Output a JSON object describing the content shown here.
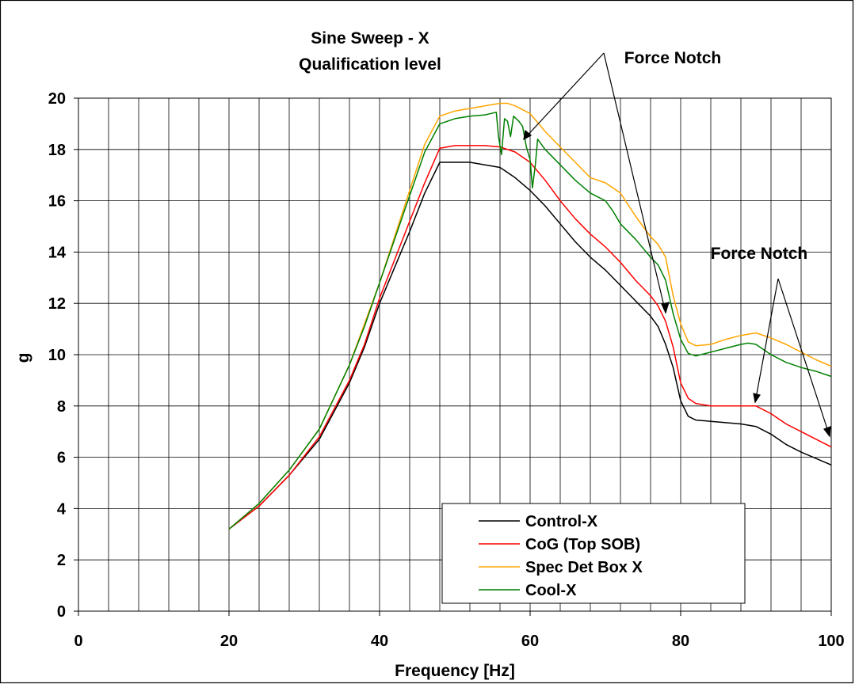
{
  "chart_data": {
    "type": "line",
    "title": [
      "Sine Sweep - X",
      "Qualification level"
    ],
    "xlabel": "Frequency [Hz]",
    "ylabel": "g",
    "xlim": [
      0,
      100
    ],
    "ylim": [
      0,
      20
    ],
    "x_ticks": [
      "0",
      "20",
      "40",
      "60",
      "80",
      "100"
    ],
    "y_ticks": [
      "0",
      "2",
      "4",
      "6",
      "8",
      "10",
      "12",
      "14",
      "16",
      "18",
      "20"
    ],
    "grid": true,
    "legend_position": "bottom-center",
    "annotations": [
      "Force Notch",
      "Force Notch"
    ],
    "series": [
      {
        "name": "Control-X",
        "color": "#000000",
        "points": [
          [
            20,
            3.2
          ],
          [
            24,
            4.1
          ],
          [
            28,
            5.3
          ],
          [
            32,
            6.7
          ],
          [
            36,
            8.9
          ],
          [
            38,
            10.3
          ],
          [
            40,
            12.0
          ],
          [
            42,
            13.4
          ],
          [
            44,
            14.8
          ],
          [
            46,
            16.3
          ],
          [
            48,
            17.5
          ],
          [
            50,
            17.5
          ],
          [
            52,
            17.5
          ],
          [
            54,
            17.4
          ],
          [
            56,
            17.3
          ],
          [
            58,
            16.9
          ],
          [
            60,
            16.4
          ],
          [
            62,
            15.8
          ],
          [
            64,
            15.1
          ],
          [
            66,
            14.4
          ],
          [
            68,
            13.8
          ],
          [
            70,
            13.3
          ],
          [
            72,
            12.7
          ],
          [
            74,
            12.1
          ],
          [
            76,
            11.5
          ],
          [
            77,
            11.1
          ],
          [
            78,
            10.4
          ],
          [
            79,
            9.5
          ],
          [
            80,
            8.2
          ],
          [
            81,
            7.6
          ],
          [
            82,
            7.45
          ],
          [
            84,
            7.4
          ],
          [
            86,
            7.35
          ],
          [
            88,
            7.3
          ],
          [
            90,
            7.2
          ],
          [
            92,
            6.9
          ],
          [
            94,
            6.5
          ],
          [
            96,
            6.2
          ],
          [
            98,
            5.95
          ],
          [
            100,
            5.7
          ]
        ]
      },
      {
        "name": "CoG (Top SOB)",
        "color": "#ff0000",
        "points": [
          [
            20,
            3.2
          ],
          [
            24,
            4.1
          ],
          [
            28,
            5.3
          ],
          [
            32,
            6.8
          ],
          [
            36,
            9.0
          ],
          [
            38,
            10.4
          ],
          [
            40,
            12.2
          ],
          [
            42,
            13.7
          ],
          [
            44,
            15.2
          ],
          [
            46,
            16.7
          ],
          [
            48,
            18.05
          ],
          [
            50,
            18.15
          ],
          [
            52,
            18.15
          ],
          [
            54,
            18.15
          ],
          [
            56,
            18.1
          ],
          [
            58,
            17.9
          ],
          [
            60,
            17.5
          ],
          [
            62,
            16.8
          ],
          [
            64,
            16.0
          ],
          [
            66,
            15.3
          ],
          [
            68,
            14.7
          ],
          [
            70,
            14.2
          ],
          [
            72,
            13.6
          ],
          [
            74,
            12.9
          ],
          [
            76,
            12.3
          ],
          [
            77,
            11.9
          ],
          [
            78,
            11.3
          ],
          [
            79,
            10.3
          ],
          [
            80,
            8.9
          ],
          [
            81,
            8.3
          ],
          [
            82,
            8.1
          ],
          [
            84,
            8.0
          ],
          [
            86,
            8.0
          ],
          [
            88,
            8.0
          ],
          [
            90,
            8.0
          ],
          [
            92,
            7.7
          ],
          [
            94,
            7.3
          ],
          [
            96,
            7.0
          ],
          [
            98,
            6.7
          ],
          [
            100,
            6.4
          ]
        ]
      },
      {
        "name": "Spec Det Box X",
        "color": "#ffa500",
        "points": [
          [
            20,
            3.2
          ],
          [
            24,
            4.2
          ],
          [
            28,
            5.5
          ],
          [
            32,
            7.1
          ],
          [
            36,
            9.6
          ],
          [
            38,
            11.2
          ],
          [
            40,
            12.8
          ],
          [
            42,
            14.6
          ],
          [
            44,
            16.4
          ],
          [
            46,
            18.2
          ],
          [
            48,
            19.3
          ],
          [
            50,
            19.5
          ],
          [
            52,
            19.6
          ],
          [
            54,
            19.7
          ],
          [
            56,
            19.8
          ],
          [
            57,
            19.8
          ],
          [
            58,
            19.7
          ],
          [
            60,
            19.4
          ],
          [
            62,
            18.7
          ],
          [
            64,
            18.1
          ],
          [
            66,
            17.5
          ],
          [
            68,
            16.9
          ],
          [
            70,
            16.7
          ],
          [
            72,
            16.3
          ],
          [
            74,
            15.4
          ],
          [
            76,
            14.6
          ],
          [
            77,
            14.3
          ],
          [
            78,
            13.8
          ],
          [
            79,
            12.3
          ],
          [
            80,
            11.2
          ],
          [
            81,
            10.5
          ],
          [
            82,
            10.35
          ],
          [
            84,
            10.4
          ],
          [
            86,
            10.6
          ],
          [
            88,
            10.75
          ],
          [
            90,
            10.85
          ],
          [
            92,
            10.65
          ],
          [
            94,
            10.4
          ],
          [
            96,
            10.1
          ],
          [
            98,
            9.8
          ],
          [
            100,
            9.55
          ]
        ]
      },
      {
        "name": "Cool-X",
        "color": "#008000",
        "points": [
          [
            20,
            3.2
          ],
          [
            24,
            4.2
          ],
          [
            28,
            5.5
          ],
          [
            32,
            7.1
          ],
          [
            36,
            9.6
          ],
          [
            38,
            11.1
          ],
          [
            40,
            12.8
          ],
          [
            42,
            14.5
          ],
          [
            44,
            16.2
          ],
          [
            46,
            17.9
          ],
          [
            48,
            19.0
          ],
          [
            50,
            19.2
          ],
          [
            52,
            19.3
          ],
          [
            54,
            19.35
          ],
          [
            55.5,
            19.45
          ],
          [
            55.8,
            18.5
          ],
          [
            56.2,
            17.8
          ],
          [
            56.6,
            19.2
          ],
          [
            57,
            19.1
          ],
          [
            57.4,
            18.5
          ],
          [
            57.8,
            19.3
          ],
          [
            58.5,
            19.1
          ],
          [
            59,
            18.9
          ],
          [
            59.5,
            18.1
          ],
          [
            60,
            17.6
          ],
          [
            60.3,
            16.5
          ],
          [
            60.7,
            17.4
          ],
          [
            61,
            18.4
          ],
          [
            62,
            18.0
          ],
          [
            64,
            17.4
          ],
          [
            66,
            16.8
          ],
          [
            68,
            16.3
          ],
          [
            70,
            16.0
          ],
          [
            71,
            15.6
          ],
          [
            72,
            15.1
          ],
          [
            74,
            14.5
          ],
          [
            76,
            13.8
          ],
          [
            77,
            13.5
          ],
          [
            78,
            12.9
          ],
          [
            79,
            11.6
          ],
          [
            80,
            10.6
          ],
          [
            81,
            10.05
          ],
          [
            82,
            9.95
          ],
          [
            84,
            10.1
          ],
          [
            86,
            10.25
          ],
          [
            88,
            10.4
          ],
          [
            89,
            10.45
          ],
          [
            90,
            10.4
          ],
          [
            92,
            10.0
          ],
          [
            94,
            9.7
          ],
          [
            96,
            9.5
          ],
          [
            98,
            9.35
          ],
          [
            100,
            9.15
          ]
        ]
      }
    ]
  }
}
